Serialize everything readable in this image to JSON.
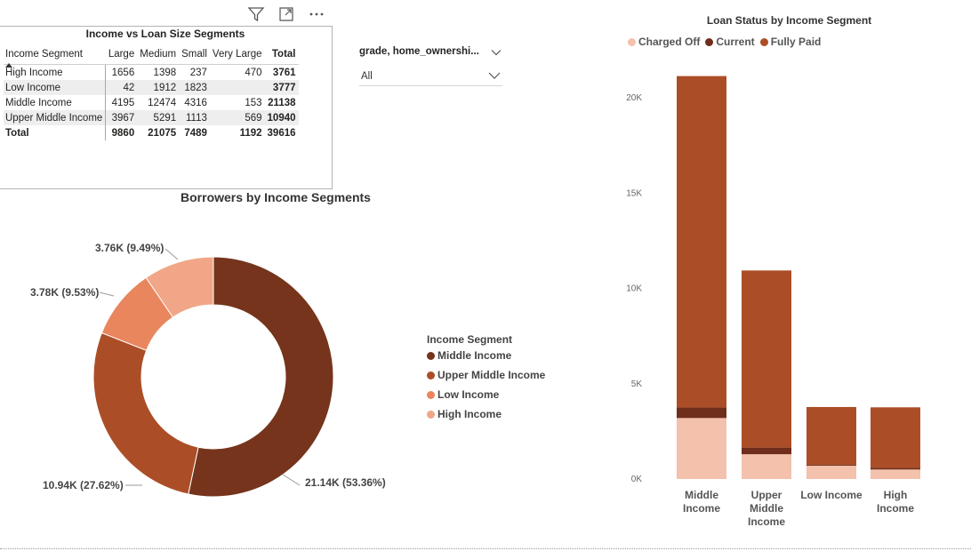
{
  "matrix": {
    "title": "Income vs Loan Size Segments",
    "columns": [
      "Income Segment",
      "Large",
      "Medium",
      "Small",
      "Very Large",
      "Total"
    ],
    "rows": [
      [
        "High Income",
        "1656",
        "1398",
        "237",
        "470",
        "3761"
      ],
      [
        "Low Income",
        "42",
        "1912",
        "1823",
        "",
        "3777"
      ],
      [
        "Middle Income",
        "4195",
        "12474",
        "4316",
        "153",
        "21138"
      ],
      [
        "Upper Middle Income",
        "3967",
        "5291",
        "1113",
        "569",
        "10940"
      ]
    ],
    "total_row": [
      "Total",
      "9860",
      "21075",
      "7489",
      "1192",
      "39616"
    ]
  },
  "slicer": {
    "title": "grade, home_ownershi...",
    "value": "All"
  },
  "colors": {
    "middle_income": "#75341b",
    "upper_middle_income": "#ab4e27",
    "low_income": "#e9865e",
    "high_income": "#f0a687",
    "charged_off": "#f3c1ac",
    "current": "#6f2d1c",
    "fully_paid": "#ab4e27"
  },
  "chart_data": [
    {
      "type": "donut",
      "title": "Borrowers by Income Segments",
      "legend_title": "Income Segment",
      "legend_position": "right",
      "categories": [
        "Middle Income",
        "Upper Middle Income",
        "Low Income",
        "High Income"
      ],
      "values": [
        21138,
        10940,
        3777,
        3761
      ],
      "labels": [
        "21.14K (53.36%)",
        "10.94K (27.62%)",
        "3.78K (9.53%)",
        "3.76K (9.49%)"
      ]
    },
    {
      "type": "bar",
      "stacked": true,
      "title": "Loan Status by Income Segment",
      "legend_position": "top-left",
      "categories": [
        "Middle Income",
        "Upper Middle Income",
        "Low Income",
        "High Income"
      ],
      "series": [
        {
          "name": "Charged Off",
          "values": [
            3200,
            1300,
            700,
            500
          ]
        },
        {
          "name": "Current",
          "values": [
            550,
            350,
            50,
            80
          ]
        },
        {
          "name": "Fully Paid",
          "values": [
            17388,
            9290,
            3027,
            3181
          ]
        }
      ],
      "y_ticks": [
        "0K",
        "5K",
        "10K",
        "15K",
        "20K"
      ],
      "ylim": [
        0,
        22000
      ],
      "grid": false
    }
  ]
}
